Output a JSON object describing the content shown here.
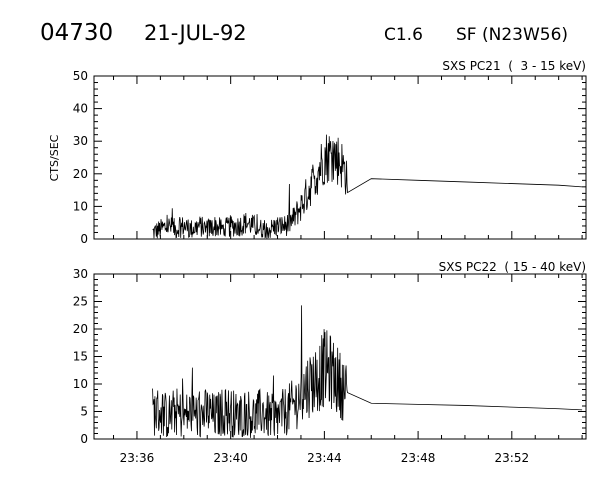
{
  "header": {
    "event_id": "04730",
    "date": "21-JUL-92",
    "goes_class": "C1.6",
    "location": "SF (N23W56)"
  },
  "chart_data": [
    {
      "type": "line",
      "title": "SXS PC21  (  3 - 15 keV)",
      "ylabel": "CTS/SEC",
      "xlabel": "",
      "xlim": [
        "23:34:10",
        "23:55:10"
      ],
      "ylim": [
        0,
        50
      ],
      "yticks": [
        0,
        10,
        20,
        30,
        40,
        50
      ],
      "series": [
        {
          "x": [
            "23:36:40",
            "23:37:00",
            "23:37:20",
            "23:37:40",
            "23:38:00",
            "23:38:20",
            "23:38:40",
            "23:39:00",
            "23:39:20",
            "23:39:40",
            "23:40:00",
            "23:40:20",
            "23:40:40",
            "23:41:00",
            "23:41:20",
            "23:41:40",
            "23:42:00",
            "23:42:20",
            "23:42:40",
            "23:43:00",
            "23:43:20",
            "23:43:40",
            "23:44:00",
            "23:44:20",
            "23:44:40",
            "23:45:00",
            "23:46:00",
            "23:48:00",
            "23:50:00",
            "23:52:00",
            "23:54:00",
            "23:55:00"
          ],
          "values": [
            2,
            3,
            4,
            3,
            4,
            3,
            4,
            3,
            4,
            3,
            4,
            4,
            5,
            4,
            3,
            3,
            4,
            4,
            6,
            10,
            15,
            20,
            25,
            26,
            24,
            19,
            18.5,
            18,
            17.5,
            17,
            16.5,
            16
          ]
        }
      ]
    },
    {
      "type": "line",
      "title": "SXS PC22  ( 15 - 40 keV)",
      "ylabel": "",
      "xlabel": "",
      "xlim": [
        "23:34:10",
        "23:55:10"
      ],
      "ylim": [
        0,
        30
      ],
      "yticks": [
        0,
        5,
        10,
        15,
        20,
        25,
        30
      ],
      "xticks": [
        "23:36",
        "23:40",
        "23:44",
        "23:48",
        "23:52"
      ],
      "series": [
        {
          "x": [
            "23:36:40",
            "23:37:00",
            "23:37:20",
            "23:37:40",
            "23:38:00",
            "23:38:20",
            "23:38:40",
            "23:39:00",
            "23:39:20",
            "23:39:40",
            "23:40:00",
            "23:40:20",
            "23:40:40",
            "23:41:00",
            "23:41:20",
            "23:41:40",
            "23:42:00",
            "23:42:20",
            "23:42:40",
            "23:43:00",
            "23:43:20",
            "23:43:40",
            "23:44:00",
            "23:44:20",
            "23:44:40",
            "23:45:00",
            "23:46:00",
            "23:48:00",
            "23:50:00",
            "23:52:00",
            "23:54:00",
            "23:55:00"
          ],
          "values": [
            5,
            5,
            4,
            5,
            4,
            5,
            4,
            5,
            4,
            5,
            5,
            4,
            5,
            4,
            5,
            4,
            4,
            5,
            6,
            8,
            10,
            11,
            13,
            12,
            10,
            8,
            6.5,
            6.3,
            6.1,
            5.8,
            5.5,
            5.3
          ]
        }
      ]
    }
  ]
}
